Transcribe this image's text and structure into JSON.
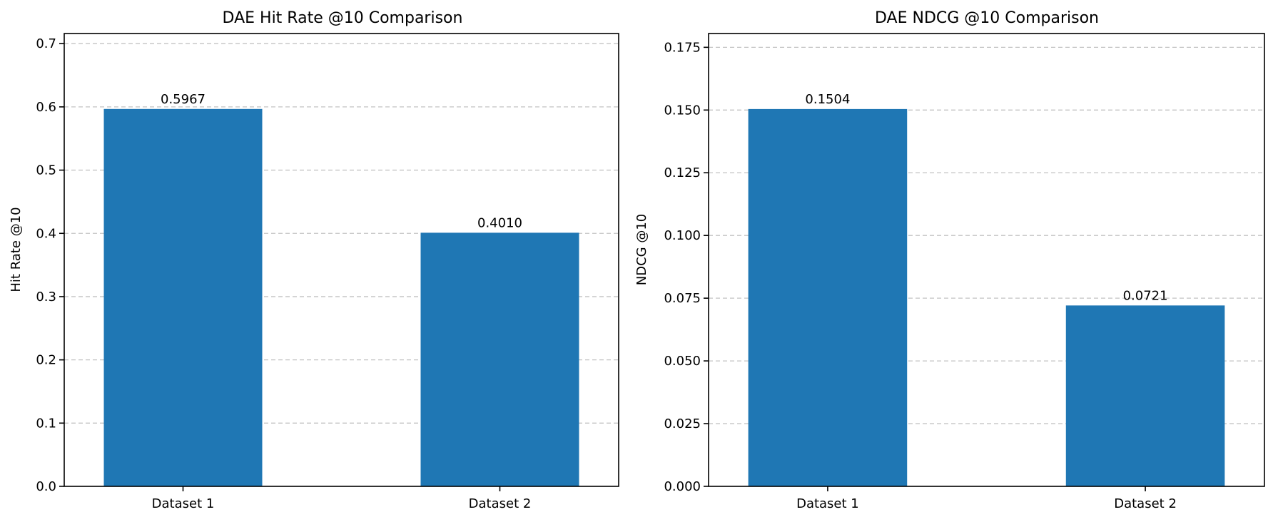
{
  "chart_data": [
    {
      "type": "bar",
      "title": "DAE Hit Rate @10 Comparison",
      "xlabel": "",
      "ylabel": "Hit Rate @10",
      "categories": [
        "Dataset 1",
        "Dataset 2"
      ],
      "values": [
        0.5967,
        0.401
      ],
      "value_labels": [
        "0.5967",
        "0.4010"
      ],
      "ylim": [
        0,
        0.716
      ],
      "yticks": [
        0,
        0.1,
        0.2,
        0.3,
        0.4,
        0.5,
        0.6,
        0.7
      ],
      "ytick_labels": [
        "0.0",
        "0.1",
        "0.2",
        "0.3",
        "0.4",
        "0.5",
        "0.6",
        "0.7"
      ],
      "grid": "y",
      "bar_color": "#1f77b4"
    },
    {
      "type": "bar",
      "title": "DAE NDCG @10 Comparison",
      "xlabel": "",
      "ylabel": "NDCG @10",
      "categories": [
        "Dataset 1",
        "Dataset 2"
      ],
      "values": [
        0.1504,
        0.0721
      ],
      "value_labels": [
        "0.1504",
        "0.0721"
      ],
      "ylim": [
        0,
        0.1805
      ],
      "yticks": [
        0,
        0.025,
        0.05,
        0.075,
        0.1,
        0.125,
        0.15,
        0.175
      ],
      "ytick_labels": [
        "0.000",
        "0.025",
        "0.050",
        "0.075",
        "0.100",
        "0.125",
        "0.150",
        "0.175"
      ],
      "grid": "y",
      "bar_color": "#1f77b4"
    }
  ]
}
